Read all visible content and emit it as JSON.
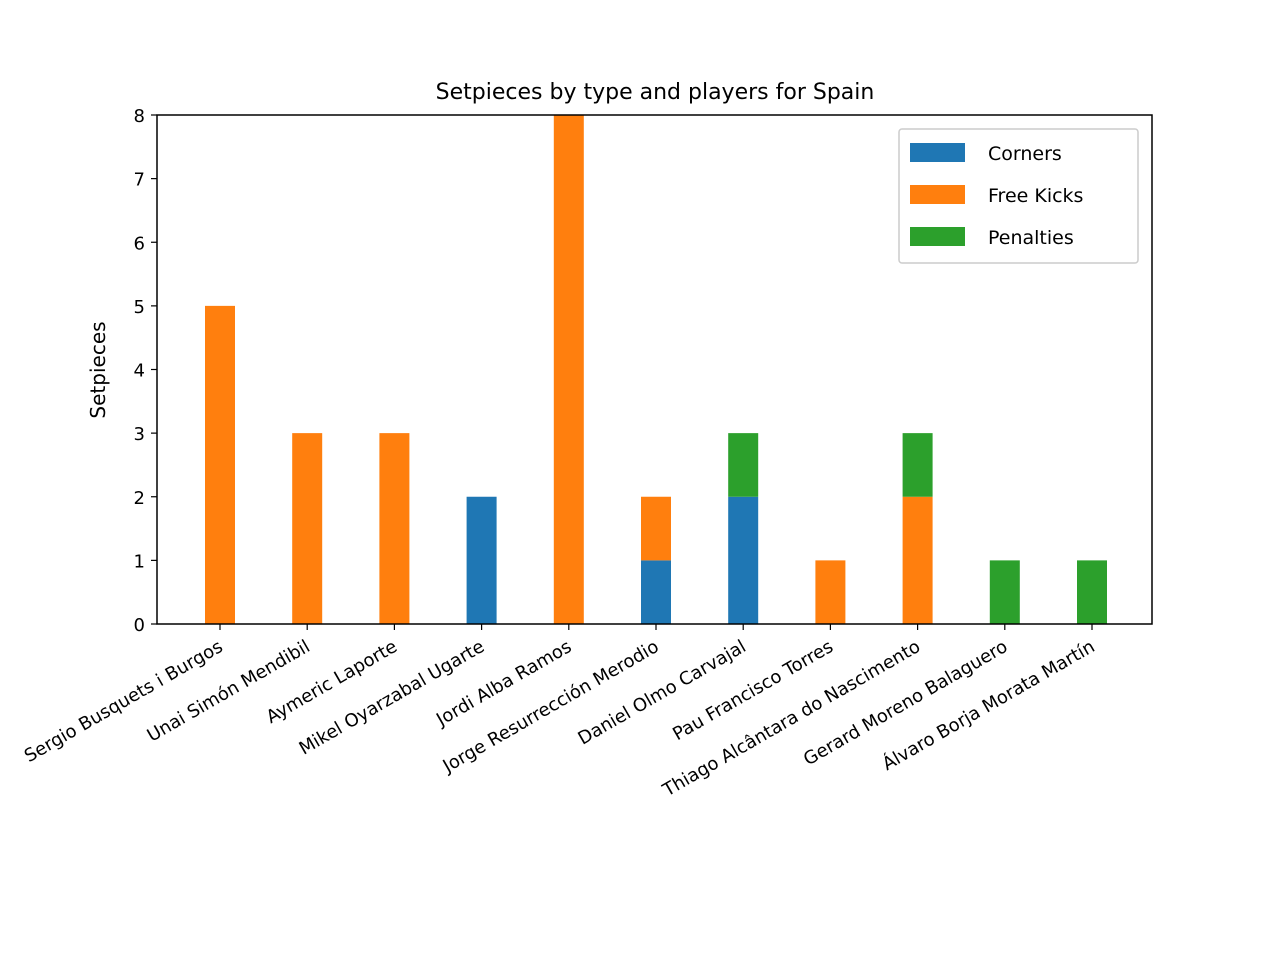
{
  "chart_data": {
    "type": "bar",
    "stacked": true,
    "title": "Setpieces by type and players for Spain",
    "xlabel": "",
    "ylabel": "Setpieces",
    "ylim": [
      0,
      8
    ],
    "yticks": [
      0,
      1,
      2,
      3,
      4,
      5,
      6,
      7,
      8
    ],
    "grid": false,
    "legend_position": "top-right",
    "categories": [
      "Sergio Busquets i Burgos",
      "Unai Simón Mendibil",
      "Aymeric Laporte",
      "Mikel Oyarzabal Ugarte",
      "Jordi Alba Ramos",
      "Jorge Resurrección Merodio",
      "Daniel Olmo Carvajal",
      "Pau Francisco Torres",
      "Thiago Alcântara do Nascimento",
      "Gerard Moreno Balaguero",
      "Álvaro Borja Morata Martín"
    ],
    "series": [
      {
        "name": "Corners",
        "color": "#1f77b4",
        "values": [
          0,
          0,
          0,
          2,
          0,
          1,
          2,
          0,
          0,
          0,
          0
        ]
      },
      {
        "name": "Free Kicks",
        "color": "#ff7f0e",
        "values": [
          5,
          3,
          3,
          0,
          8,
          1,
          0,
          1,
          2,
          0,
          0
        ]
      },
      {
        "name": "Penalties",
        "color": "#2ca02c",
        "values": [
          0,
          0,
          0,
          0,
          0,
          0,
          1,
          0,
          1,
          1,
          1
        ]
      }
    ]
  }
}
